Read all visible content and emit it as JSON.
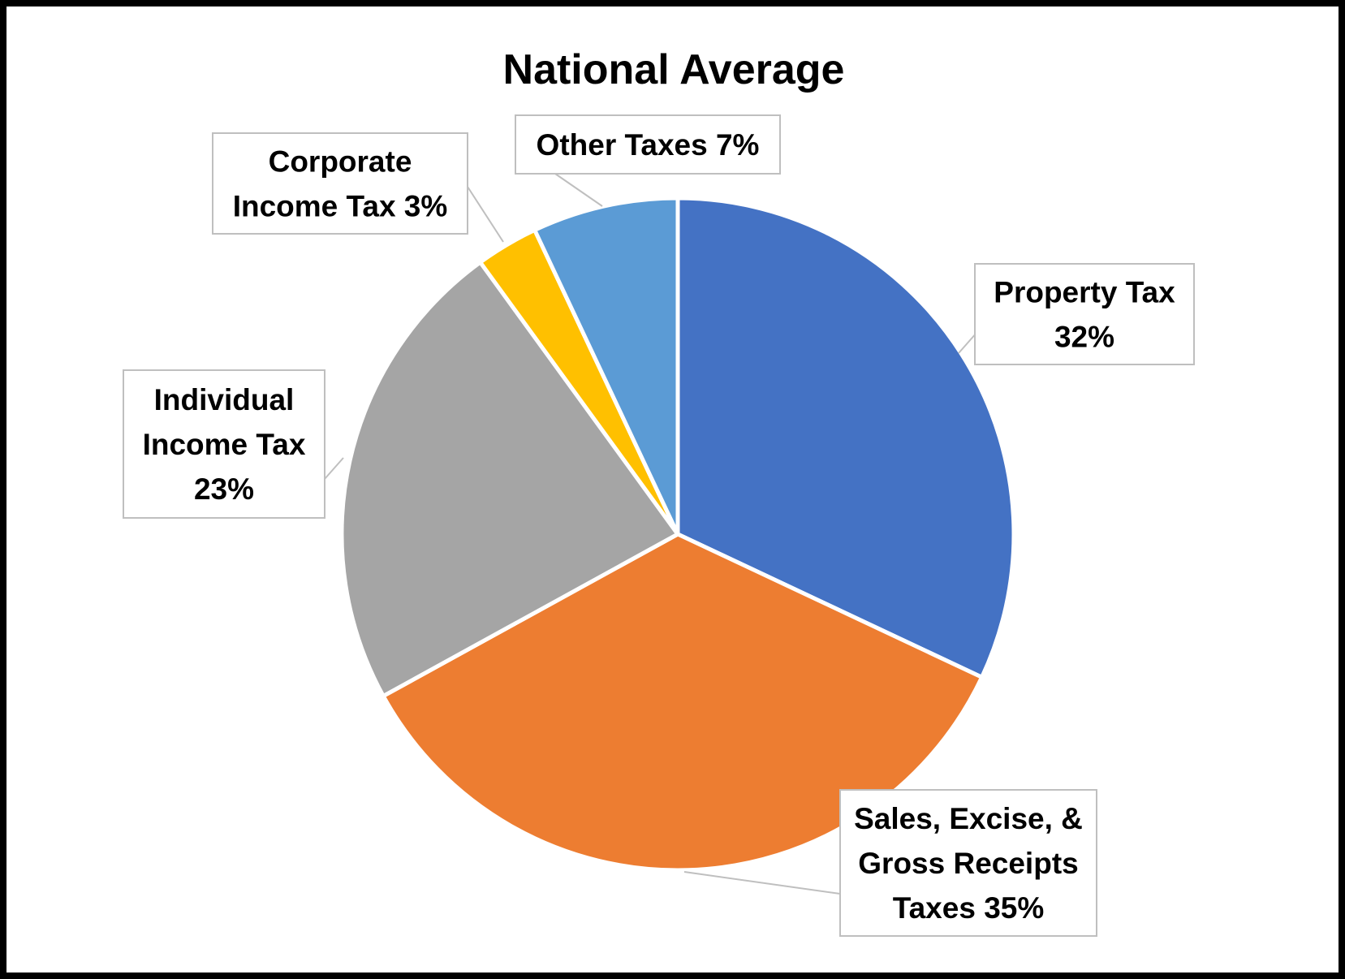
{
  "chart_data": {
    "type": "pie",
    "title": "National Average",
    "slices": [
      {
        "label_lines": [
          "Property Tax",
          "32%"
        ],
        "value": 32,
        "color": "#4472C4"
      },
      {
        "label_lines": [
          "Sales, Excise, &",
          "Gross Receipts",
          "Taxes 35%"
        ],
        "value": 35,
        "color": "#ED7D31"
      },
      {
        "label_lines": [
          "Individual",
          "Income Tax",
          "23%"
        ],
        "value": 23,
        "color": "#A5A5A5"
      },
      {
        "label_lines": [
          "Corporate",
          "Income Tax 3%"
        ],
        "value": 3,
        "color": "#FFC000"
      },
      {
        "label_lines": [
          "Other Taxes 7%"
        ],
        "value": 7,
        "color": "#5B9BD5"
      }
    ],
    "legend": "none"
  }
}
